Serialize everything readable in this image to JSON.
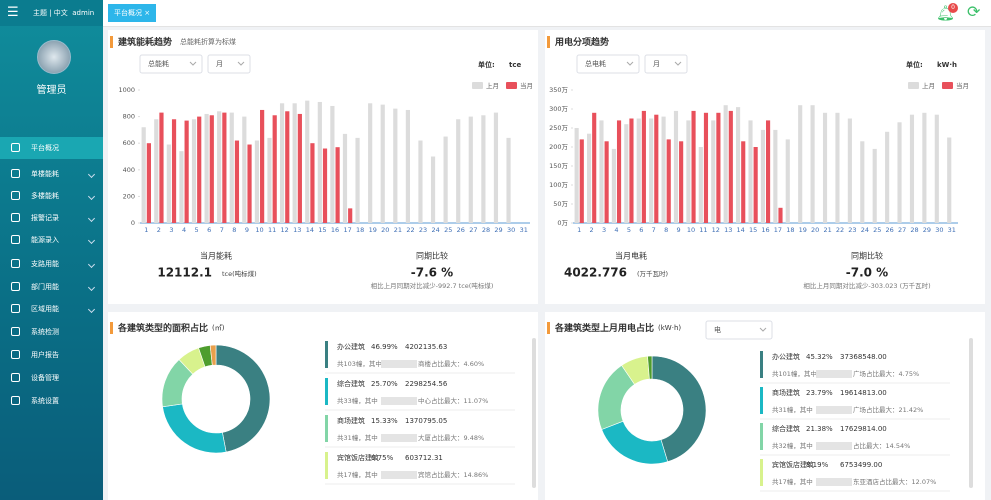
{
  "sidebar": {
    "theme": "主题 | 中文",
    "user": "admin",
    "role": "管理员",
    "menu": [
      "平台概况",
      "单楼能耗",
      "多楼能耗",
      "报警记录",
      "能源录入",
      "支路用能",
      "部门用能",
      "区域用能",
      "系统检测",
      "用户报告",
      "设备管理",
      "系统设置"
    ]
  },
  "header": {
    "tab": "平台概况",
    "close": "×",
    "badge": "0"
  },
  "chart_data": [
    {
      "type": "bar",
      "title": "建筑能耗趋势",
      "subtitle": "总能耗折算为标煤",
      "selects": [
        "总能耗",
        "月"
      ],
      "unit_label": "单位:",
      "unit": "tce",
      "categories": [
        "1",
        "2",
        "3",
        "4",
        "5",
        "6",
        "7",
        "8",
        "9",
        "10",
        "11",
        "12",
        "13",
        "14",
        "15",
        "16",
        "17",
        "18",
        "19",
        "20",
        "21",
        "22",
        "23",
        "24",
        "25",
        "26",
        "27",
        "28",
        "29",
        "30",
        "31"
      ],
      "series": [
        {
          "name": "上月",
          "color": "#dcdcdc",
          "values": [
            720,
            780,
            590,
            540,
            780,
            820,
            840,
            830,
            800,
            620,
            640,
            900,
            900,
            920,
            910,
            880,
            670,
            640,
            900,
            890,
            860,
            850,
            620,
            500,
            650,
            780,
            800,
            810,
            830,
            640,
            null
          ]
        },
        {
          "name": "当月",
          "color": "#e8505b",
          "values": [
            600,
            830,
            780,
            770,
            800,
            810,
            830,
            620,
            590,
            850,
            810,
            840,
            820,
            600,
            560,
            570,
            110,
            null,
            null,
            null,
            null,
            null,
            null,
            null,
            null,
            null,
            null,
            null,
            null,
            null,
            null
          ]
        }
      ],
      "ylim": [
        0,
        1000
      ],
      "yticks": [
        0,
        200,
        400,
        600,
        800,
        1000
      ],
      "grid": false,
      "summary": {
        "left_label": "当月能耗",
        "left_value": "12112.1",
        "left_unit": "tce(吨标煤)",
        "right_label": "同期比较",
        "right_value": "-7.6 %",
        "right_note": "相比上月同期对比减少-992.7 tce(吨标煤)"
      }
    },
    {
      "type": "bar",
      "title": "用电分项趋势",
      "selects": [
        "总电耗",
        "月"
      ],
      "unit_label": "单位:",
      "unit": "kW·h",
      "categories": [
        "1",
        "2",
        "3",
        "4",
        "5",
        "6",
        "7",
        "8",
        "9",
        "10",
        "11",
        "12",
        "13",
        "14",
        "15",
        "16",
        "17",
        "18",
        "19",
        "20",
        "21",
        "22",
        "23",
        "24",
        "25",
        "26",
        "27",
        "28",
        "29",
        "30",
        "31"
      ],
      "series": [
        {
          "name": "上月",
          "color": "#dcdcdc",
          "values": [
            2500000,
            2350000,
            2700000,
            1950000,
            2600000,
            2750000,
            2750000,
            2800000,
            2950000,
            2700000,
            2000000,
            2700000,
            3100000,
            3050000,
            2700000,
            2450000,
            2450000,
            2200000,
            3100000,
            3100000,
            2900000,
            2900000,
            2750000,
            2150000,
            1950000,
            2400000,
            2650000,
            2850000,
            2900000,
            2850000,
            2250000
          ]
        },
        {
          "name": "当月",
          "color": "#e8505b",
          "values": [
            2200000,
            2900000,
            2150000,
            2700000,
            2750000,
            2950000,
            2850000,
            2200000,
            2150000,
            2950000,
            2900000,
            2900000,
            2950000,
            2150000,
            2000000,
            2700000,
            400000,
            null,
            null,
            null,
            null,
            null,
            null,
            null,
            null,
            null,
            null,
            null,
            null,
            null,
            null
          ]
        }
      ],
      "ylim": [
        0,
        3500000
      ],
      "yticks": [
        {
          "value": 0,
          "label": "0万"
        },
        {
          "value": 500000,
          "label": "50万"
        },
        {
          "value": 1000000,
          "label": "100万"
        },
        {
          "value": 1500000,
          "label": "150万"
        },
        {
          "value": 2000000,
          "label": "200万"
        },
        {
          "value": 2500000,
          "label": "250万"
        },
        {
          "value": 3000000,
          "label": "300万"
        },
        {
          "value": 3500000,
          "label": "350万"
        }
      ],
      "grid": false,
      "summary": {
        "left_label": "当月电耗",
        "left_value": "4022.776",
        "left_unit": "(万千瓦时)",
        "right_label": "同期比较",
        "right_value": "-7.0 %",
        "right_note": "相比上月同期对比减少-303.023 (万千瓦时)"
      }
    },
    {
      "type": "pie",
      "title": "各建筑类型的面积占比",
      "unit": "(㎡)",
      "items": [
        {
          "name": "办公建筑",
          "value": 46.99,
          "value_label": "46.99%",
          "amount": "4202135.63",
          "count_note": "共103幢，其中",
          "max_note": "商楼占比最大：4.60%",
          "color": "#3a8082"
        },
        {
          "name": "综合建筑",
          "value": 25.7,
          "value_label": "25.70%",
          "amount": "2298254.56",
          "count_note": "共33幢，其中",
          "max_note": "中心占比最大：11.07%",
          "color": "#1bb8c4"
        },
        {
          "name": "商场建筑",
          "value": 15.33,
          "value_label": "15.33%",
          "amount": "1370795.05",
          "count_note": "共31幢，其中",
          "max_note": "大厦占比最大：9.48%",
          "color": "#82d5a7"
        },
        {
          "name": "宾馆饭店建筑",
          "value": 6.75,
          "value_label": "6.75%",
          "amount": "603712.31",
          "count_note": "共17幢，其中",
          "max_note": "宾馆占比最大：14.86%",
          "color": "#d8f28d"
        },
        {
          "name": null,
          "value": 3.5,
          "color": "#4e9d2d"
        },
        {
          "name": null,
          "value": 1.73,
          "color": "#e8a04c"
        }
      ]
    },
    {
      "type": "pie",
      "title": "各建筑类型上月用电占比",
      "unit": "(kW·h)",
      "selects": [
        "电"
      ],
      "items": [
        {
          "name": "办公建筑",
          "value": 45.32,
          "value_label": "45.32%",
          "amount": "37368548.00",
          "count_note": "共101幢，其中",
          "max_note": "广场占比最大：4.75%",
          "color": "#3a8082"
        },
        {
          "name": "商场建筑",
          "value": 23.79,
          "value_label": "23.79%",
          "amount": "19614813.00",
          "count_note": "共31幢，其中",
          "max_note": "广场占比最大：21.42%",
          "color": "#1bb8c4"
        },
        {
          "name": "综合建筑",
          "value": 21.38,
          "value_label": "21.38%",
          "amount": "17629814.00",
          "count_note": "共32幢，其中",
          "max_note": "占比最大：14.54%",
          "color": "#82d5a7"
        },
        {
          "name": "宾馆饭店建筑",
          "value": 8.19,
          "value_label": "8.19%",
          "amount": "6753499.00",
          "count_note": "共17幢，其中",
          "max_note": "东亚酒店占比最大：12.07%",
          "color": "#d8f28d"
        },
        {
          "name": null,
          "value": 1.32,
          "color": "#4e9d2d"
        }
      ]
    }
  ]
}
